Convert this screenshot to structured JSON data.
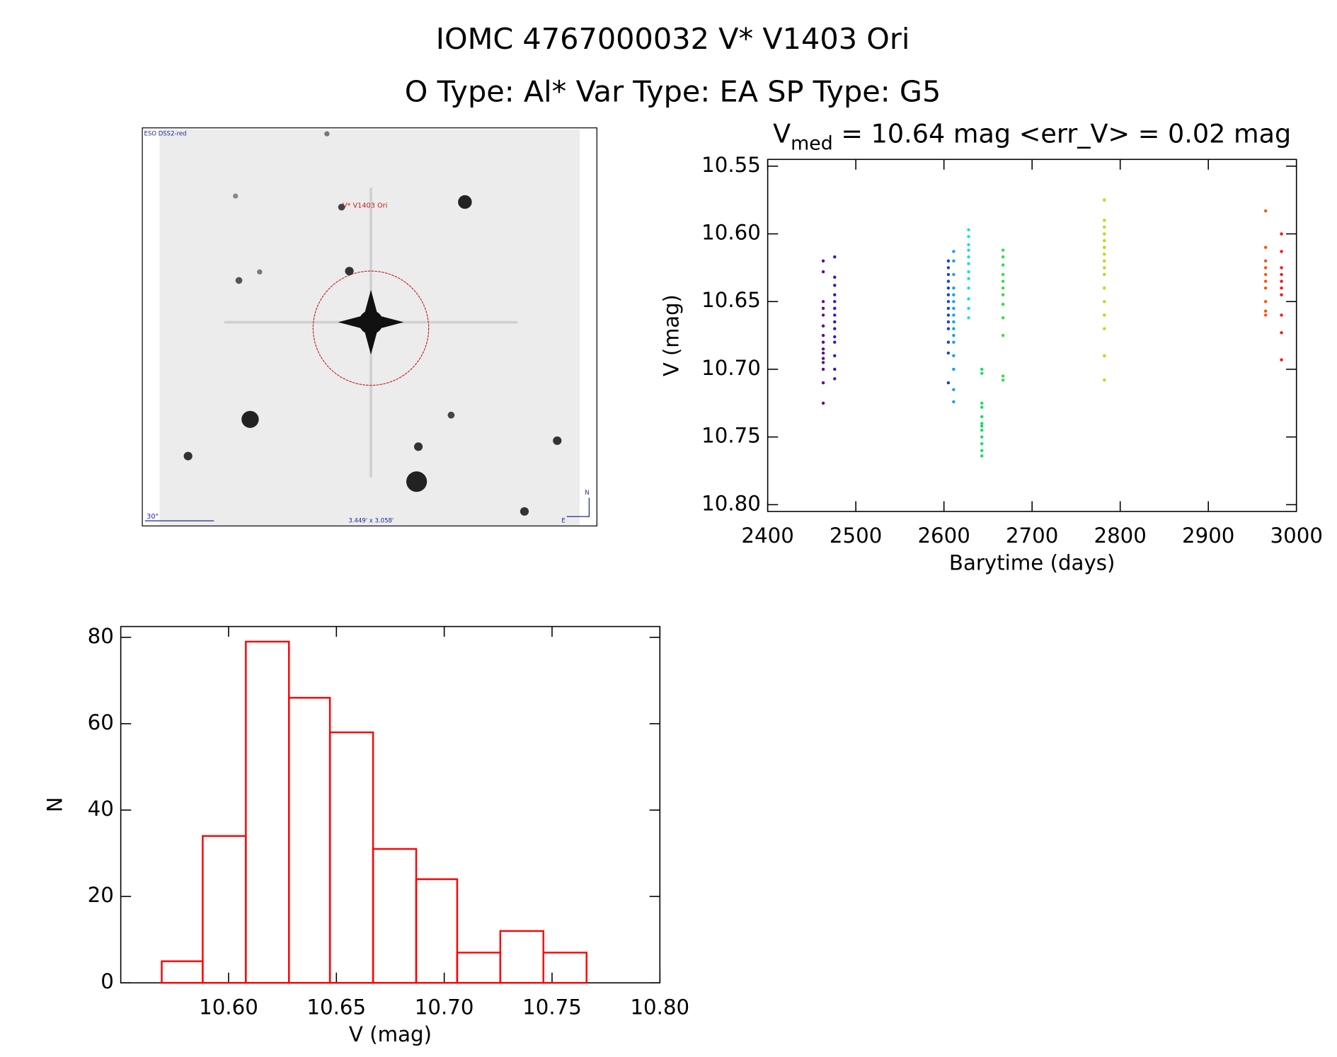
{
  "title": "IOMC 4767000032   V* V1403 Ori",
  "subtitle": "O Type: Al*  Var Type: EA  SP Type: G5",
  "image": {
    "survey": "ESO DSS2-red",
    "target": "V* V1403 Ori",
    "scale": "30\"",
    "field": "3.449' x 3.058'",
    "north": "N",
    "east": "E"
  },
  "chart_data": [
    {
      "type": "scatter",
      "title": [
        "V",
        "med",
        " = 10.64 mag <err_V> = 0.02 mag"
      ],
      "x_label": "Barytime (days)",
      "y_label": "V (mag)",
      "xlim": [
        2400,
        3000
      ],
      "xticks": [
        2400,
        2500,
        2600,
        2700,
        2800,
        2900,
        3000
      ],
      "ylim": [
        10.805,
        10.545
      ],
      "yticks": [
        {
          "value": 10.55,
          "label": "10.55"
        },
        {
          "value": 10.6,
          "label": "10.60"
        },
        {
          "value": 10.65,
          "label": "10.65"
        },
        {
          "value": 10.7,
          "label": "10.70"
        },
        {
          "value": 10.75,
          "label": "10.75"
        },
        {
          "value": 10.8,
          "label": "10.80"
        }
      ],
      "series": [
        {
          "color": "#600090",
          "x": [
            2463,
            2463,
            2463,
            2463,
            2463,
            2463,
            2463,
            2463,
            2463,
            2463,
            2463,
            2463,
            2463,
            2463,
            2463
          ],
          "values": [
            10.62,
            10.628,
            10.65,
            10.655,
            10.66,
            10.668,
            10.675,
            10.68,
            10.685,
            10.688,
            10.692,
            10.695,
            10.7,
            10.71,
            10.725
          ]
        },
        {
          "color": "#3010d0",
          "x": [
            2476,
            2476,
            2476,
            2476,
            2476,
            2476,
            2476,
            2476,
            2476,
            2476,
            2476,
            2476,
            2476,
            2476
          ],
          "values": [
            10.617,
            10.632,
            10.638,
            10.645,
            10.65,
            10.655,
            10.66,
            10.665,
            10.67,
            10.676,
            10.68,
            10.69,
            10.7,
            10.707
          ]
        },
        {
          "color": "#1040e0",
          "x": [
            2605,
            2605,
            2605,
            2605,
            2605,
            2605,
            2605,
            2605,
            2605,
            2605,
            2605,
            2605,
            2605,
            2605
          ],
          "values": [
            10.62,
            10.625,
            10.63,
            10.635,
            10.64,
            10.645,
            10.65,
            10.655,
            10.66,
            10.665,
            10.67,
            10.68,
            10.688,
            10.71
          ]
        },
        {
          "color": "#10a0f0",
          "x": [
            2611,
            2611,
            2611,
            2611,
            2611,
            2611,
            2611,
            2611,
            2611,
            2611,
            2611,
            2611,
            2611,
            2611,
            2611,
            2611
          ],
          "values": [
            10.613,
            10.62,
            10.63,
            10.64,
            10.645,
            10.65,
            10.655,
            10.66,
            10.665,
            10.67,
            10.675,
            10.68,
            10.69,
            10.7,
            10.715,
            10.724
          ]
        },
        {
          "color": "#10e0e0",
          "x": [
            2628,
            2628,
            2628,
            2628,
            2628,
            2628,
            2628,
            2628,
            2628,
            2628,
            2628,
            2628
          ],
          "values": [
            10.597,
            10.602,
            10.608,
            10.612,
            10.617,
            10.622,
            10.628,
            10.633,
            10.64,
            10.648,
            10.655,
            10.662
          ]
        },
        {
          "color": "#10e060",
          "x": [
            2643,
            2643,
            2643,
            2643,
            2643,
            2643,
            2643,
            2643,
            2643,
            2643,
            2643,
            2643
          ],
          "values": [
            10.7,
            10.703,
            10.725,
            10.728,
            10.735,
            10.74,
            10.742,
            10.745,
            10.75,
            10.755,
            10.76,
            10.764
          ]
        },
        {
          "color": "#30e040",
          "x": [
            2667,
            2667,
            2667,
            2667,
            2667,
            2667,
            2667,
            2667,
            2667,
            2667,
            2667,
            2667
          ],
          "values": [
            10.612,
            10.617,
            10.623,
            10.63,
            10.635,
            10.64,
            10.645,
            10.652,
            10.662,
            10.675,
            10.705,
            10.708
          ]
        },
        {
          "color": "#b0e000",
          "x": [
            2782,
            2782,
            2782,
            2782,
            2782,
            2782,
            2782,
            2782,
            2782,
            2782,
            2782,
            2782,
            2782,
            2782,
            2782,
            2782
          ],
          "values": [
            10.575,
            10.59,
            10.595,
            10.6,
            10.605,
            10.61,
            10.615,
            10.62,
            10.625,
            10.63,
            10.64,
            10.65,
            10.66,
            10.67,
            10.69,
            10.708
          ]
        },
        {
          "color": "#ff5000",
          "x": [
            2965,
            2965,
            2965,
            2965,
            2965,
            2965,
            2965,
            2965,
            2965,
            2965
          ],
          "values": [
            10.583,
            10.61,
            10.62,
            10.625,
            10.63,
            10.635,
            10.64,
            10.65,
            10.657,
            10.66
          ]
        },
        {
          "color": "#ff1010",
          "x": [
            2983,
            2983,
            2983,
            2983,
            2983,
            2983,
            2983,
            2983,
            2983,
            2983
          ],
          "values": [
            10.6,
            10.613,
            10.625,
            10.63,
            10.635,
            10.64,
            10.645,
            10.66,
            10.673,
            10.693
          ]
        }
      ]
    },
    {
      "type": "histogram",
      "color": "#ff0000",
      "x_label": "V (mag)",
      "y_label": "N",
      "bins": [
        10.569,
        10.588,
        10.608,
        10.628,
        10.647,
        10.667,
        10.687,
        10.706,
        10.726,
        10.746,
        10.766
      ],
      "values": [
        5,
        34,
        79,
        66,
        58,
        31,
        24,
        7,
        12,
        7
      ],
      "xlim": [
        10.55,
        10.8
      ],
      "xticks": [
        {
          "value": 10.6,
          "label": "10.60"
        },
        {
          "value": 10.65,
          "label": "10.65"
        },
        {
          "value": 10.7,
          "label": "10.70"
        },
        {
          "value": 10.75,
          "label": "10.75"
        },
        {
          "value": 10.8,
          "label": "10.80"
        }
      ],
      "ylim": [
        0,
        82.5
      ],
      "yticks": [
        0,
        20,
        40,
        60,
        80
      ]
    }
  ]
}
